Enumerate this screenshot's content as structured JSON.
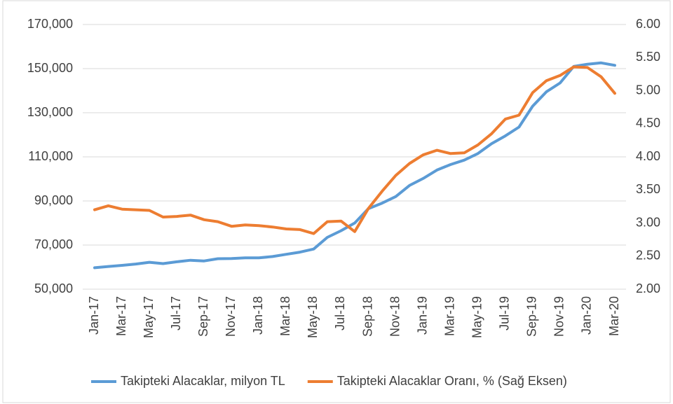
{
  "chart_data": {
    "type": "line",
    "categories": [
      "Jan-17",
      null,
      "Mar-17",
      null,
      "May-17",
      null,
      "Jul-17",
      null,
      "Sep-17",
      null,
      "Nov-17",
      null,
      "Jan-18",
      null,
      "Mar-18",
      null,
      "May-18",
      null,
      "Jul-18",
      null,
      "Sep-18",
      null,
      "Nov-18",
      null,
      "Jan-19",
      null,
      "Mar-19",
      null,
      "May-19",
      null,
      "Jul-19",
      null,
      "Sep-19",
      null,
      "Nov-19",
      null,
      "Jan-20",
      null,
      "Mar-20"
    ],
    "series": [
      {
        "name": "Takipteki Alacaklar, milyon TL",
        "color": "#5b9bd5",
        "values": [
          59700,
          60300,
          60800,
          61400,
          62200,
          61600,
          62400,
          63100,
          62800,
          63800,
          63900,
          64200,
          64200,
          64800,
          65800,
          66800,
          68200,
          73500,
          76500,
          80000,
          86500,
          89000,
          92000,
          97000,
          100200,
          104000,
          106500,
          108500,
          111500,
          116000,
          119500,
          123500,
          133000,
          139500,
          143500,
          151000,
          152000,
          152600,
          151500
        ]
      },
      {
        "name": "Takipteki Alacaklar Oranı, % (Sağ Eksen)",
        "color": "#ed7d31",
        "axis": "y2",
        "values": [
          3.2,
          3.26,
          3.21,
          3.2,
          3.19,
          3.09,
          3.1,
          3.12,
          3.05,
          3.02,
          2.95,
          2.97,
          2.96,
          2.94,
          2.91,
          2.9,
          2.84,
          3.02,
          3.03,
          2.87,
          3.22,
          3.48,
          3.72,
          3.9,
          4.03,
          4.1,
          4.05,
          4.06,
          4.18,
          4.35,
          4.57,
          4.63,
          4.97,
          5.15,
          5.23,
          5.36,
          5.35,
          5.21,
          4.96
        ]
      }
    ],
    "ylim": [
      50000,
      170000
    ],
    "yticks": [
      {
        "value": 50000,
        "label": "50,000"
      },
      {
        "value": 70000,
        "label": "70,000"
      },
      {
        "value": 90000,
        "label": "90,000"
      },
      {
        "value": 110000,
        "label": "110,000"
      },
      {
        "value": 130000,
        "label": "130,000"
      },
      {
        "value": 150000,
        "label": "150,000"
      },
      {
        "value": 170000,
        "label": "170,000"
      }
    ],
    "y2lim": [
      2,
      6
    ],
    "y2ticks": [
      {
        "value": 2,
        "label": "2.00"
      },
      {
        "value": 2.5,
        "label": "2.50"
      },
      {
        "value": 3,
        "label": "3.00"
      },
      {
        "value": 3.5,
        "label": "3.50"
      },
      {
        "value": 4,
        "label": "4.00"
      },
      {
        "value": 4.5,
        "label": "4.50"
      },
      {
        "value": 5,
        "label": "5.00"
      },
      {
        "value": 5.5,
        "label": "5.50"
      },
      {
        "value": 6,
        "label": "6.00"
      }
    ],
    "grid": true,
    "legend": "bottom"
  }
}
